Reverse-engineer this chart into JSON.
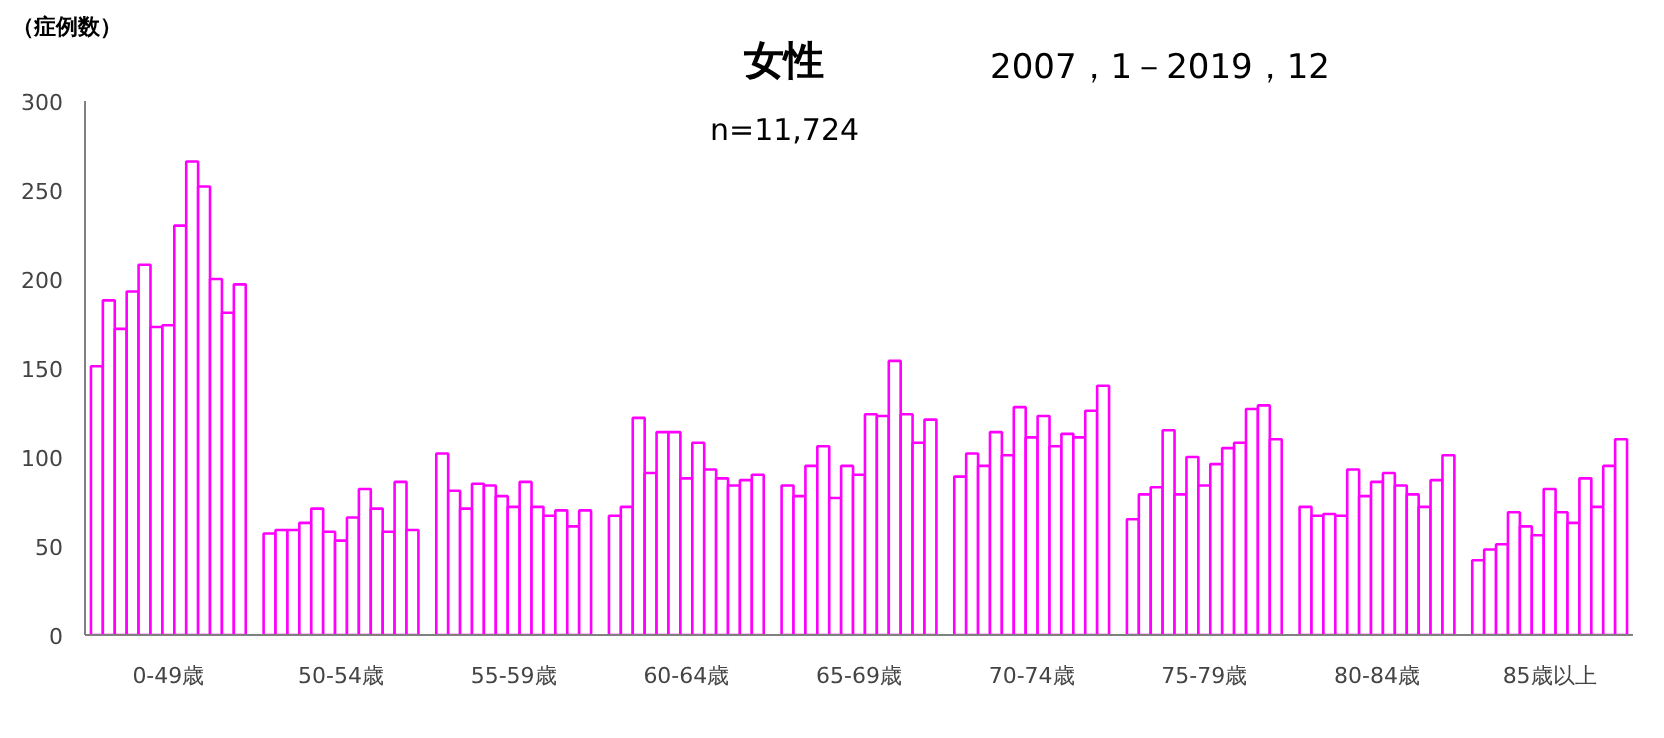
{
  "chart_data": {
    "type": "bar",
    "title": "女性",
    "subtitle": "2007，1－2019，12",
    "ylabel": "（症例数）",
    "annotations": [
      "n=11,724"
    ],
    "categories": [
      null,
      null,
      null,
      null,
      null,
      null,
      "0-49歳",
      null,
      null,
      null,
      null,
      null,
      null,
      null,
      null,
      null,
      null,
      null,
      null,
      "50-54歳",
      null,
      null,
      null,
      null,
      null,
      null,
      null,
      null,
      null,
      null,
      null,
      null,
      "55-59歳",
      null,
      null,
      null,
      null,
      null,
      null,
      null,
      null,
      null,
      null,
      null,
      null,
      "60-64歳",
      null,
      null,
      null,
      null,
      null,
      null,
      null,
      null,
      null,
      null,
      null,
      null,
      "65-69歳",
      null,
      null,
      null,
      null,
      null,
      null,
      null,
      null,
      null,
      null,
      null,
      null,
      "70-74歳",
      null,
      null,
      null,
      null,
      null,
      null,
      null,
      null,
      null,
      null,
      null,
      null,
      "75-79歳",
      null,
      null,
      null,
      null,
      null,
      null,
      null,
      null,
      null,
      null,
      null,
      null,
      "80-84歳",
      null,
      null,
      null,
      null,
      null,
      null,
      null,
      null,
      null,
      null,
      null,
      null,
      "85歳以上",
      null,
      null,
      null,
      null,
      null,
      null
    ],
    "series": [
      {
        "color": "#ff00ff",
        "values": [
          151,
          188,
          172,
          193,
          208,
          173,
          174,
          230,
          266,
          252,
          200,
          181,
          197,
          57,
          59,
          59,
          63,
          71,
          58,
          53,
          66,
          82,
          71,
          58,
          86,
          59,
          102,
          81,
          71,
          85,
          84,
          78,
          72,
          86,
          72,
          67,
          70,
          61,
          70,
          67,
          72,
          122,
          91,
          114,
          114,
          88,
          108,
          93,
          88,
          84,
          87,
          90,
          84,
          78,
          95,
          106,
          77,
          95,
          90,
          124,
          123,
          154,
          124,
          108,
          121,
          89,
          102,
          95,
          114,
          101,
          128,
          111,
          123,
          106,
          113,
          111,
          126,
          140,
          65,
          79,
          83,
          115,
          79,
          100,
          84,
          96,
          105,
          108,
          127,
          129,
          110,
          72,
          67,
          68,
          67,
          93,
          78,
          86,
          91,
          84,
          79,
          72,
          87,
          101,
          42,
          48,
          51,
          69,
          61,
          56,
          82,
          69,
          63,
          88,
          72,
          95,
          110
        ]
      }
    ],
    "ylim": [
      0,
      300
    ],
    "yticks": [
      0,
      50,
      100,
      150,
      200,
      250,
      300
    ],
    "grid": false
  }
}
